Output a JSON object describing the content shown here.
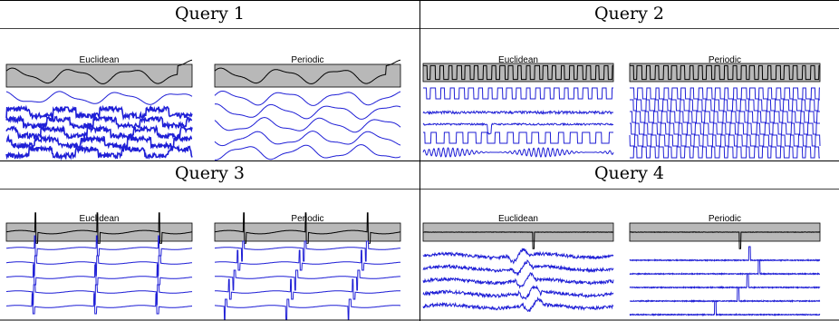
{
  "queries": [
    {
      "title": "Query 1",
      "left_label": "Euclidean",
      "right_label": "Periodic"
    },
    {
      "title": "Query 2",
      "left_label": "Euclidean",
      "right_label": "Periodic"
    },
    {
      "title": "Query 3",
      "left_label": "Euclidean",
      "right_label": "Periodic"
    },
    {
      "title": "Query 4",
      "left_label": "Euclidean",
      "right_label": "Periodic"
    }
  ],
  "colors": {
    "query_box": "#b8b8b8",
    "result_line": "#1f1fd6",
    "query_line": "#000000"
  }
}
